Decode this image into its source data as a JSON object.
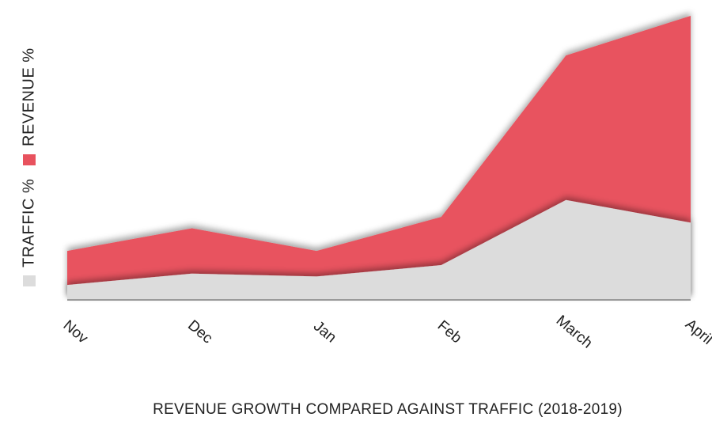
{
  "chart_data": {
    "type": "area",
    "title": "REVENUE GROWTH COMPARED AGAINST TRAFFIC (2018-2019)",
    "categories": [
      "Nov",
      "Dec",
      "Jan",
      "Feb",
      "March",
      "April"
    ],
    "series": [
      {
        "name": "TRAFFIC %",
        "color": "#dcdcdc",
        "values": [
          5,
          9,
          8,
          12,
          35,
          27
        ]
      },
      {
        "name": "REVENUE %",
        "color": "#e8525e",
        "values": [
          17,
          25,
          17,
          29,
          86,
          100
        ]
      }
    ]
  }
}
